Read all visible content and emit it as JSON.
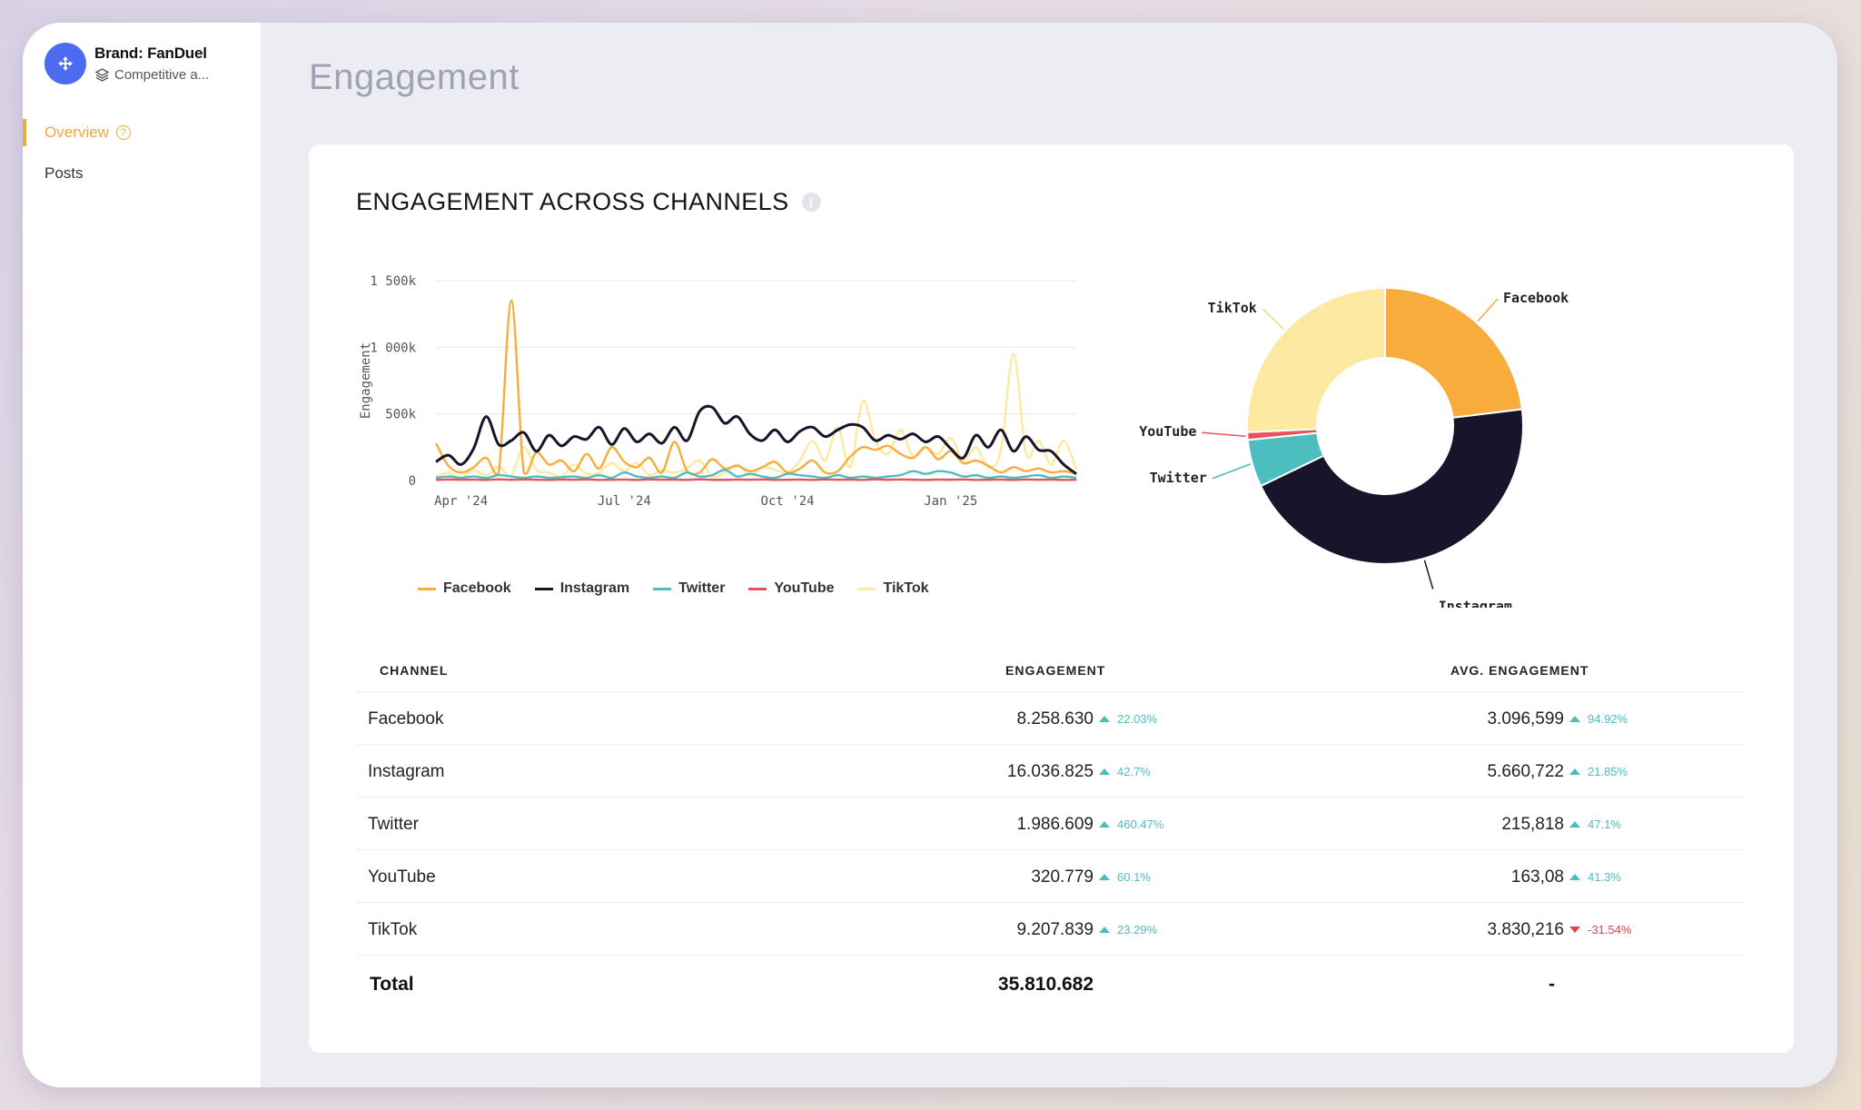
{
  "brand": {
    "name": "Brand: FanDuel",
    "subtitle": "Competitive a..."
  },
  "nav": [
    {
      "label": "Overview",
      "active": true
    },
    {
      "label": "Posts",
      "active": false
    }
  ],
  "page_title": "Engagement",
  "card_title": "ENGAGEMENT ACROSS CHANNELS",
  "colors": {
    "facebook": "#f8ac3b",
    "instagram": "#16152a",
    "twitter": "#4dbec0",
    "youtube": "#e5535c",
    "tiktok": "#fde9a1",
    "accent": "#f0a93b"
  },
  "chart_data": [
    {
      "type": "line",
      "ylabel": "Engagement",
      "yticks": [
        "0",
        "500k",
        "1 000k",
        "1 500k"
      ],
      "ylim": [
        0,
        1500000
      ],
      "xticks": [
        "Apr '24",
        "Jul '24",
        "Oct '24",
        "Jan '25"
      ],
      "x_index_range": [
        0,
        51
      ],
      "xtick_index": [
        2,
        15,
        28,
        41
      ],
      "series": [
        {
          "name": "Facebook",
          "values": [
            280000,
            110000,
            60000,
            100000,
            170000,
            60000,
            1350000,
            60000,
            210000,
            120000,
            150000,
            70000,
            200000,
            90000,
            250000,
            140000,
            100000,
            170000,
            60000,
            290000,
            70000,
            60000,
            160000,
            90000,
            110000,
            70000,
            100000,
            140000,
            60000,
            90000,
            150000,
            60000,
            70000,
            180000,
            250000,
            230000,
            260000,
            200000,
            170000,
            250000,
            160000,
            220000,
            130000,
            150000,
            110000,
            60000,
            100000,
            70000,
            90000,
            60000,
            70000,
            50000
          ]
        },
        {
          "name": "Instagram",
          "values": [
            140000,
            190000,
            120000,
            240000,
            480000,
            270000,
            300000,
            360000,
            220000,
            340000,
            260000,
            330000,
            310000,
            400000,
            270000,
            390000,
            290000,
            350000,
            280000,
            400000,
            300000,
            520000,
            550000,
            430000,
            480000,
            350000,
            300000,
            380000,
            290000,
            370000,
            400000,
            330000,
            380000,
            420000,
            400000,
            300000,
            340000,
            310000,
            350000,
            290000,
            330000,
            240000,
            170000,
            340000,
            250000,
            380000,
            220000,
            330000,
            230000,
            220000,
            120000,
            50000
          ]
        },
        {
          "name": "Twitter",
          "values": [
            20000,
            30000,
            20000,
            30000,
            20000,
            40000,
            30000,
            20000,
            30000,
            20000,
            25000,
            30000,
            20000,
            40000,
            20000,
            60000,
            30000,
            20000,
            30000,
            20000,
            60000,
            30000,
            40000,
            80000,
            30000,
            50000,
            30000,
            20000,
            50000,
            40000,
            30000,
            20000,
            40000,
            20000,
            30000,
            20000,
            30000,
            40000,
            70000,
            50000,
            70000,
            60000,
            30000,
            40000,
            20000,
            30000,
            20000,
            30000,
            40000,
            20000,
            30000,
            20000
          ]
        },
        {
          "name": "YouTube",
          "values": [
            5000,
            8000,
            6000,
            7000,
            5000,
            9000,
            6000,
            8000,
            6000,
            5000,
            7000,
            6000,
            8000,
            5000,
            6000,
            7000,
            5000,
            8000,
            6000,
            7000,
            5000,
            9000,
            6000,
            5000,
            7000,
            6000,
            8000,
            5000,
            6000,
            7000,
            5000,
            8000,
            6000,
            7000,
            5000,
            9000,
            6000,
            8000,
            6000,
            5000,
            7000,
            6000,
            8000,
            5000,
            6000,
            7000,
            5000,
            8000,
            6000,
            7000,
            5000,
            6000
          ]
        },
        {
          "name": "TikTok",
          "values": [
            30000,
            60000,
            20000,
            80000,
            40000,
            100000,
            40000,
            250000,
            80000,
            60000,
            30000,
            120000,
            50000,
            60000,
            130000,
            70000,
            130000,
            40000,
            80000,
            60000,
            90000,
            150000,
            30000,
            60000,
            120000,
            40000,
            100000,
            80000,
            60000,
            150000,
            300000,
            150000,
            400000,
            100000,
            600000,
            300000,
            200000,
            380000,
            180000,
            250000,
            200000,
            320000,
            150000,
            250000,
            100000,
            230000,
            950000,
            200000,
            300000,
            120000,
            300000,
            80000
          ]
        }
      ]
    },
    {
      "type": "pie",
      "donut": true,
      "labels": [
        "Facebook",
        "Instagram",
        "Twitter",
        "YouTube",
        "TikTok"
      ],
      "values": [
        8258630,
        16036825,
        1986609,
        320779,
        9207839
      ]
    }
  ],
  "table": {
    "headers": {
      "channel": "CHANNEL",
      "engagement": "ENGAGEMENT",
      "avg": "AVG. ENGAGEMENT"
    },
    "rows": [
      {
        "channel": "Facebook",
        "engagement": "8.258.630",
        "eng_change": "22.03%",
        "eng_dir": "up",
        "avg": "3.096,599",
        "avg_change": "94.92%",
        "avg_dir": "up"
      },
      {
        "channel": "Instagram",
        "engagement": "16.036.825",
        "eng_change": "42.7%",
        "eng_dir": "up",
        "avg": "5.660,722",
        "avg_change": "21.85%",
        "avg_dir": "up"
      },
      {
        "channel": "Twitter",
        "engagement": "1.986.609",
        "eng_change": "460.47%",
        "eng_dir": "up",
        "avg": "215,818",
        "avg_change": "47.1%",
        "avg_dir": "up"
      },
      {
        "channel": "YouTube",
        "engagement": "320.779",
        "eng_change": "60.1%",
        "eng_dir": "up",
        "avg": "163,08",
        "avg_change": "41.3%",
        "avg_dir": "up"
      },
      {
        "channel": "TikTok",
        "engagement": "9.207.839",
        "eng_change": "23.29%",
        "eng_dir": "up",
        "avg": "3.830,216",
        "avg_change": "-31.54%",
        "avg_dir": "down"
      }
    ],
    "total": {
      "label": "Total",
      "engagement": "35.810.682",
      "avg": "-"
    }
  }
}
